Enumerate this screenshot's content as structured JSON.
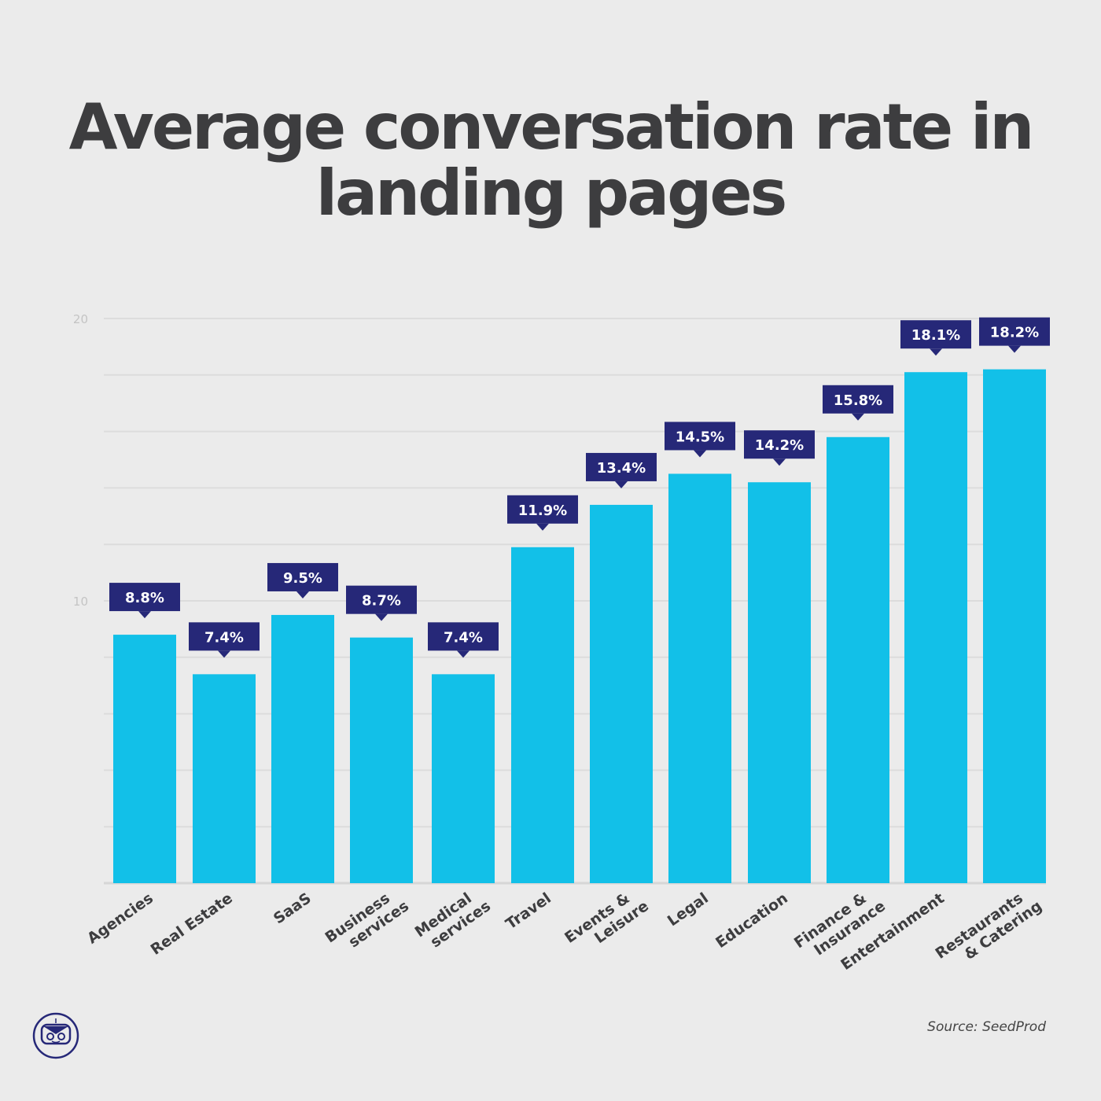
{
  "chart_data": {
    "type": "bar",
    "title": "Average conversation rate in landing pages",
    "categories": [
      "Agencies",
      "Real Estate",
      "SaaS",
      "Business services",
      "Medical services",
      "Travel",
      "Events & Leisure",
      "Legal",
      "Education",
      "Finance & Insurance",
      "Entertainment",
      "Restaurants & Catering"
    ],
    "values": [
      8.8,
      7.4,
      9.5,
      8.7,
      7.4,
      11.9,
      13.4,
      14.5,
      14.2,
      15.8,
      18.1,
      18.2
    ],
    "data_labels": [
      "8.8%",
      "7.4%",
      "9.5%",
      "8.7%",
      "7.4%",
      "11.9%",
      "13.4%",
      "14.5%",
      "14.2%",
      "15.8%",
      "18.1%",
      "18.2%"
    ],
    "yticks": [
      10,
      20
    ],
    "ylim": [
      0,
      20
    ],
    "grid": true,
    "bar_color": "#12c0e8",
    "label_color": "#262878"
  },
  "source": "Source:  SeedProd",
  "logo": "seedprod-robot-logo"
}
